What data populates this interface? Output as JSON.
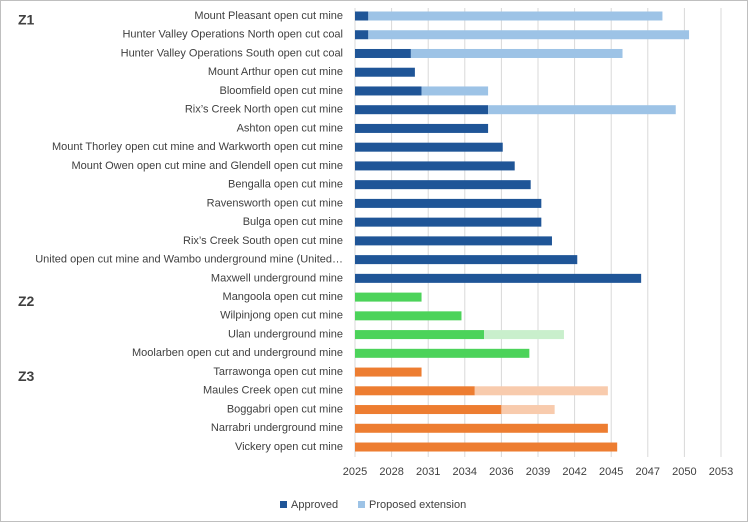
{
  "chart_data": {
    "type": "gantt",
    "orientation": "horizontal",
    "xlim": [
      2025.3,
      2052.8
    ],
    "xticks": [
      {
        "value": 2025.3,
        "label": "2025"
      },
      {
        "value": 2028.05,
        "label": "2028"
      },
      {
        "value": 2030.8,
        "label": "2031"
      },
      {
        "value": 2033.55,
        "label": "2034"
      },
      {
        "value": 2036.3,
        "label": "2036"
      },
      {
        "value": 2039.05,
        "label": "2039"
      },
      {
        "value": 2041.8,
        "label": "2042"
      },
      {
        "value": 2044.55,
        "label": "2045"
      },
      {
        "value": 2047.3,
        "label": "2047"
      },
      {
        "value": 2050.05,
        "label": "2050"
      },
      {
        "value": 2052.8,
        "label": "2053"
      }
    ],
    "grid": true,
    "legend": [
      {
        "name": "Approved",
        "color": "#1f5597"
      },
      {
        "name": "Proposed extension",
        "color": "#9dc3e6"
      }
    ],
    "groups": [
      {
        "name": "Z1",
        "color": "#1f6391",
        "approved_color": "#1f5597",
        "extension_color": "#9dc3e6",
        "categories": [
          "Mount Pleasant open cut mine",
          "Hunter Valley Operations North open cut coal",
          "Hunter Valley Operations South open cut coal",
          "Mount Arthur open cut mine",
          "Bloomfield open cut mine",
          "Rix’s Creek North open cut mine",
          "Ashton open cut mine",
          "Mount Thorley open cut mine and Warkworth open cut mine",
          "Mount Owen open cut mine and Glendell open cut mine",
          "Bengalla open cut mine",
          "Ravensworth open cut mine",
          "Bulga open cut mine",
          "Rix’s Creek South open cut mine",
          "United open cut mine and Wambo underground mine (United…",
          "Maxwell underground mine"
        ],
        "approved": [
          2026.3,
          2026.3,
          2029.5,
          2029.8,
          2030.3,
          2035.3,
          2035.3,
          2036.4,
          2037.3,
          2038.5,
          2039.3,
          2039.3,
          2040.1,
          2042.0,
          2046.8
        ],
        "extension": [
          2048.4,
          2050.4,
          2045.4,
          null,
          2035.3,
          2049.4,
          null,
          null,
          null,
          null,
          null,
          null,
          null,
          null,
          null
        ]
      },
      {
        "name": "Z2",
        "color": "#3fb94a",
        "approved_color": "#4cd35a",
        "extension_color": "#c9efcc",
        "categories": [
          "Mangoola open cut mine",
          "Wilpinjong open cut mine",
          "Ulan underground mine",
          "Moolarben open cut and underground mine"
        ],
        "approved": [
          2030.3,
          2033.3,
          2035.0,
          2038.4
        ],
        "extension": [
          null,
          null,
          2041.0,
          null
        ]
      },
      {
        "name": "Z3",
        "color": "#e2722c",
        "approved_color": "#ed7d31",
        "extension_color": "#f8cbad",
        "categories": [
          "Tarrawonga open cut mine",
          "Maules Creek open cut mine",
          "Boggabri open cut mine",
          "Narrabri underground mine",
          "Vickery open cut mine"
        ],
        "approved": [
          2030.3,
          2034.3,
          2036.3,
          2044.3,
          2045.0
        ],
        "extension": [
          null,
          2044.3,
          2040.3,
          null,
          null
        ]
      }
    ]
  }
}
